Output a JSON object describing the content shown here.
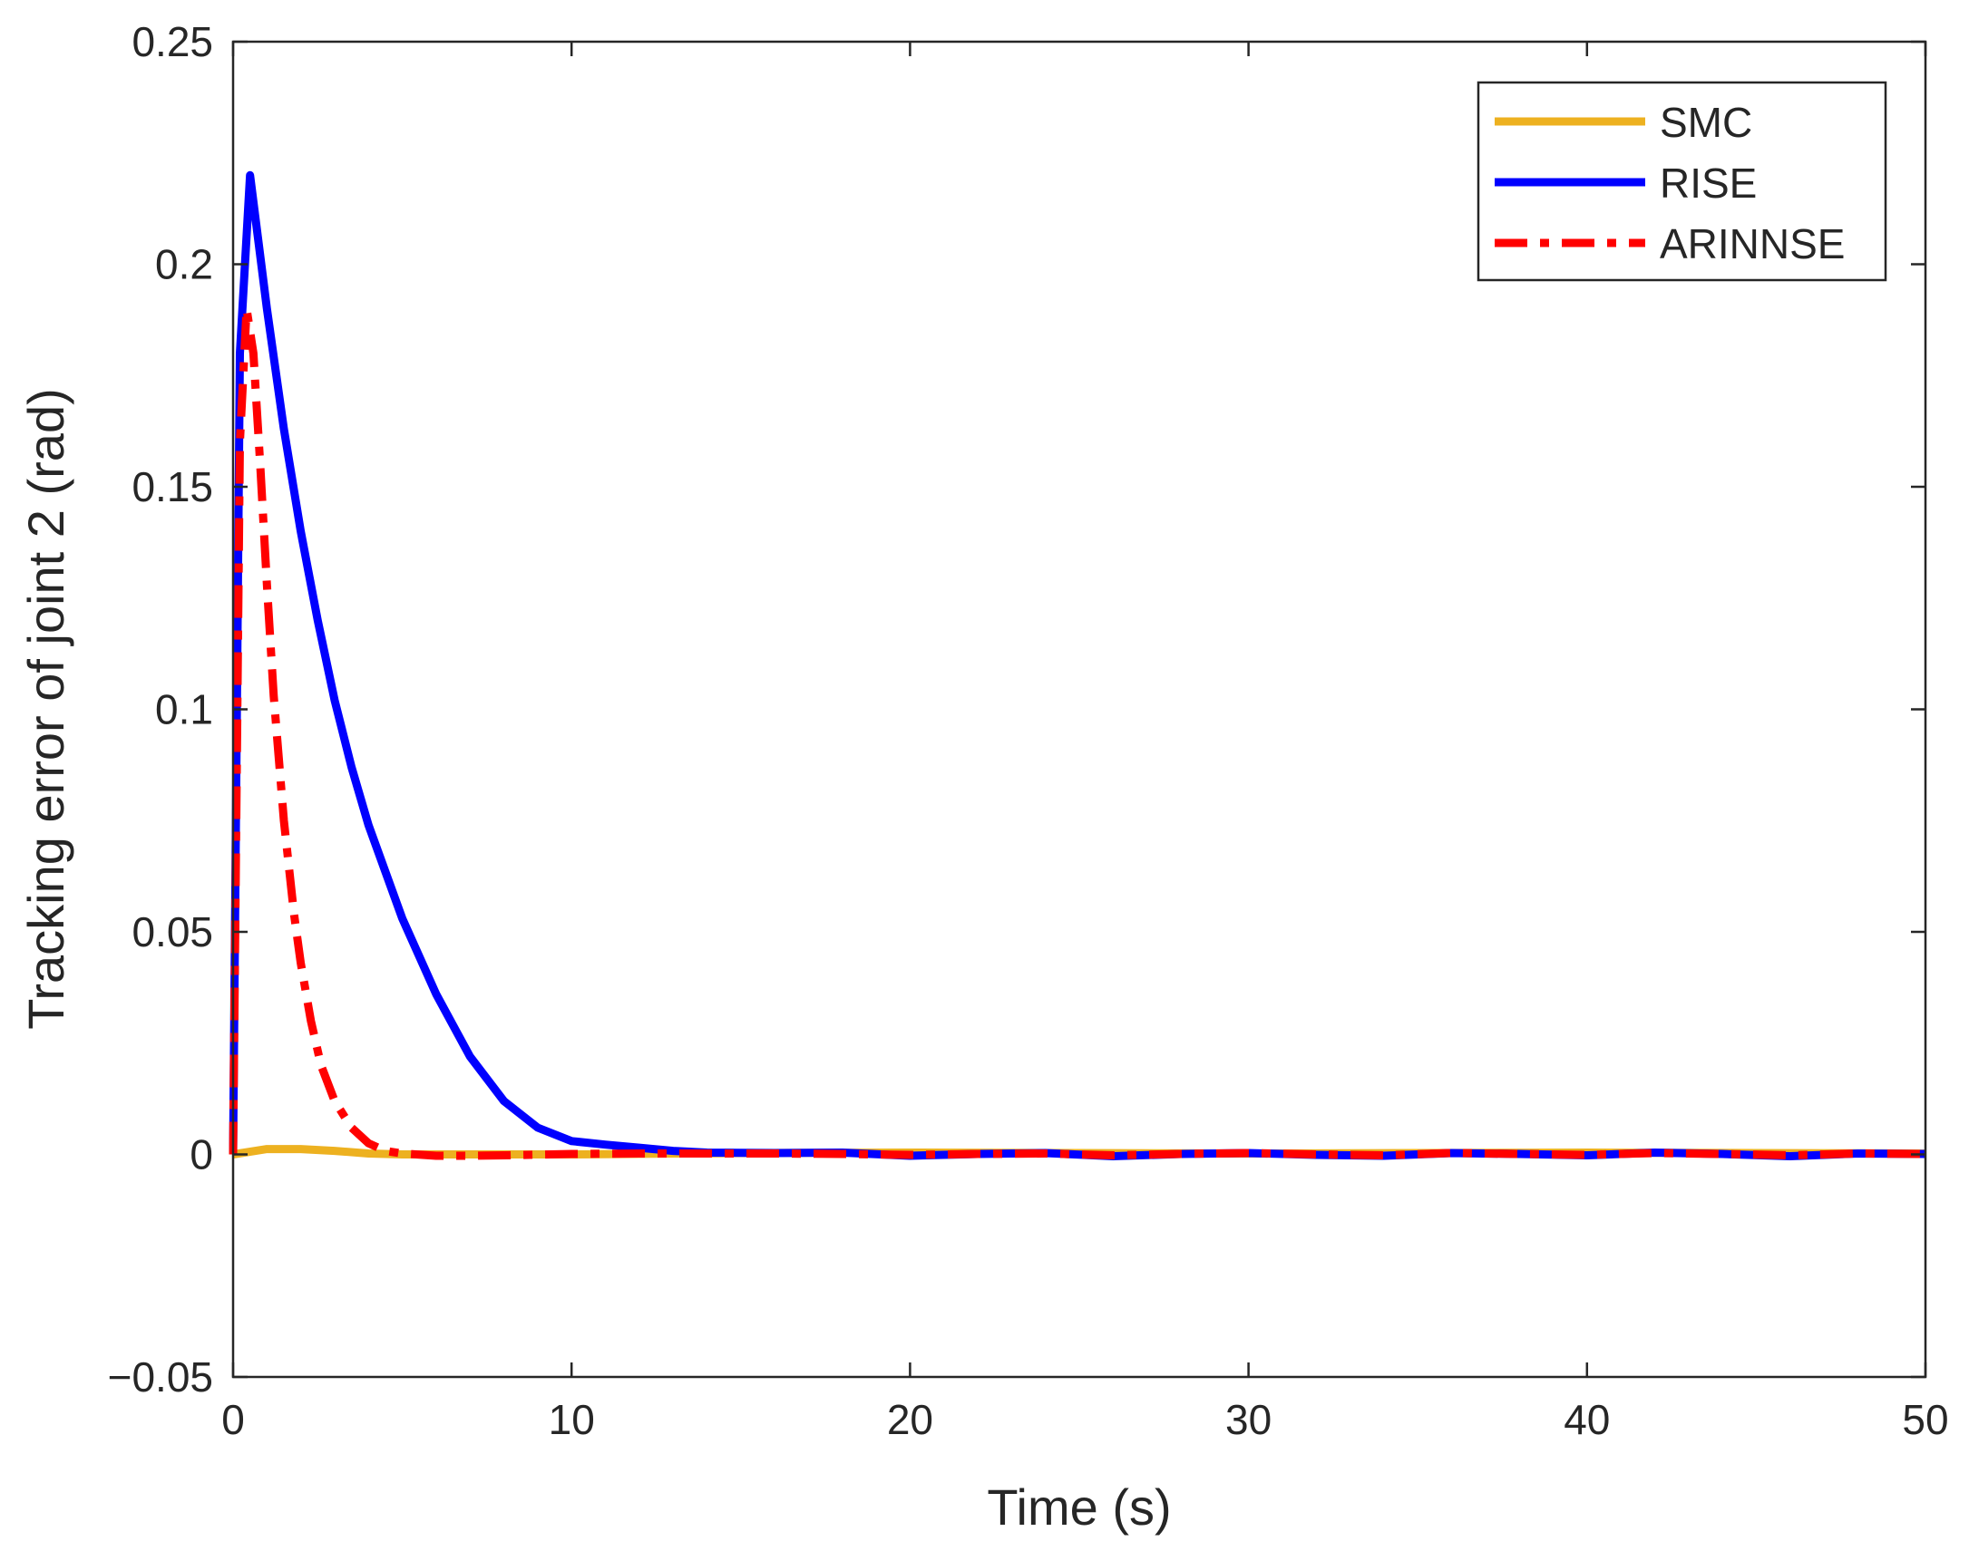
{
  "chart_data": {
    "type": "line",
    "title": "",
    "xlabel": "Time (s)",
    "ylabel": "Tracking error of joint 2 (rad)",
    "xlim": [
      0,
      50
    ],
    "ylim": [
      -0.05,
      0.25
    ],
    "x_ticks": [
      0,
      10,
      20,
      30,
      40,
      50
    ],
    "x_tick_labels": [
      "0",
      "10",
      "20",
      "30",
      "40",
      "50"
    ],
    "y_ticks": [
      -0.05,
      0,
      0.05,
      0.1,
      0.15,
      0.2,
      0.25
    ],
    "y_tick_labels": [
      "−0.05",
      "0",
      "0.05",
      "0.1",
      "0.15",
      "0.2",
      "0.25"
    ],
    "grid": false,
    "legend_position": "top-right",
    "series": [
      {
        "name": "SMC",
        "color": "#EDB120",
        "style": "solid",
        "x": [
          0,
          1,
          2,
          3,
          4,
          5,
          10,
          15,
          20,
          25,
          30,
          35,
          40,
          45,
          50
        ],
        "y": [
          0.0,
          0.0012,
          0.0012,
          0.0008,
          0.0002,
          0.0,
          0.0,
          0.0003,
          0.0004,
          0.0003,
          0.0002,
          0.0003,
          0.0004,
          0.0003,
          0.0002
        ]
      },
      {
        "name": "RISE",
        "color": "#0000FF",
        "style": "solid",
        "x": [
          0,
          0.2,
          0.5,
          1,
          1.5,
          2,
          2.5,
          3,
          3.5,
          4,
          5,
          6,
          7,
          8,
          9,
          10,
          11,
          12,
          13,
          14,
          16,
          18,
          20,
          22,
          24,
          26,
          28,
          30,
          32,
          34,
          36,
          38,
          40,
          42,
          44,
          46,
          48,
          50
        ],
        "y": [
          0.0,
          0.18,
          0.22,
          0.19,
          0.163,
          0.14,
          0.12,
          0.102,
          0.087,
          0.074,
          0.053,
          0.036,
          0.022,
          0.012,
          0.006,
          0.003,
          0.0022,
          0.0015,
          0.0008,
          0.0004,
          0.0003,
          0.0004,
          -0.0003,
          0.0001,
          0.0003,
          -0.0004,
          0.0001,
          0.0003,
          -0.0001,
          -0.0003,
          0.0003,
          0.0001,
          -0.0002,
          0.0004,
          0.0001,
          -0.0004,
          0.0002,
          0.0001
        ]
      },
      {
        "name": "ARINNSE",
        "color": "#FF0000",
        "style": "dash-dot",
        "x": [
          0,
          0.2,
          0.4,
          0.6,
          0.8,
          1.0,
          1.2,
          1.5,
          1.8,
          2.0,
          2.3,
          2.6,
          3.0,
          3.5,
          4.0,
          4.5,
          5.0,
          6,
          7,
          8,
          10,
          12,
          14,
          16,
          18,
          20,
          22,
          24,
          26,
          28,
          30,
          32,
          34,
          36,
          38,
          40,
          42,
          44,
          46,
          48,
          50
        ],
        "y": [
          0.0,
          0.16,
          0.19,
          0.18,
          0.155,
          0.128,
          0.103,
          0.075,
          0.054,
          0.043,
          0.03,
          0.02,
          0.012,
          0.006,
          0.0025,
          0.0008,
          0.0002,
          -0.0003,
          -0.0003,
          -0.0002,
          0.0001,
          0.0002,
          0.0002,
          0.0002,
          0.0001,
          -0.0001,
          0.0001,
          0.0002,
          -0.0002,
          0.0001,
          0.0003,
          0.0,
          -0.0002,
          0.0003,
          0.0001,
          -0.0001,
          0.0003,
          0.0001,
          -0.0002,
          0.0002,
          0.0001
        ]
      }
    ]
  }
}
